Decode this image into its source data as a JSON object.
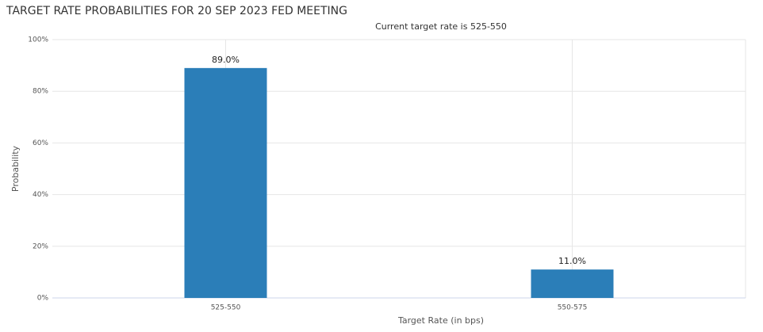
{
  "chart_data": {
    "type": "bar",
    "title": "TARGET RATE PROBABILITIES FOR 20 SEP 2023 FED MEETING",
    "subtitle": "Current target rate is 525-550",
    "x_label": "Target Rate (in bps)",
    "y_label": "Probability",
    "categories": [
      "525-550",
      "550-575"
    ],
    "values": [
      89.0,
      11.0
    ],
    "value_labels": [
      "89.0%",
      "11.0%"
    ],
    "color": "#2b7eb8",
    "ylim": [
      0,
      100
    ],
    "yticks": [
      {
        "value": 0,
        "label": "0%"
      },
      {
        "value": 20,
        "label": "20%"
      },
      {
        "value": 40,
        "label": "40%"
      },
      {
        "value": 60,
        "label": "60%"
      },
      {
        "value": 80,
        "label": "80%"
      },
      {
        "value": 100,
        "label": "100%"
      }
    ],
    "grid": true
  }
}
